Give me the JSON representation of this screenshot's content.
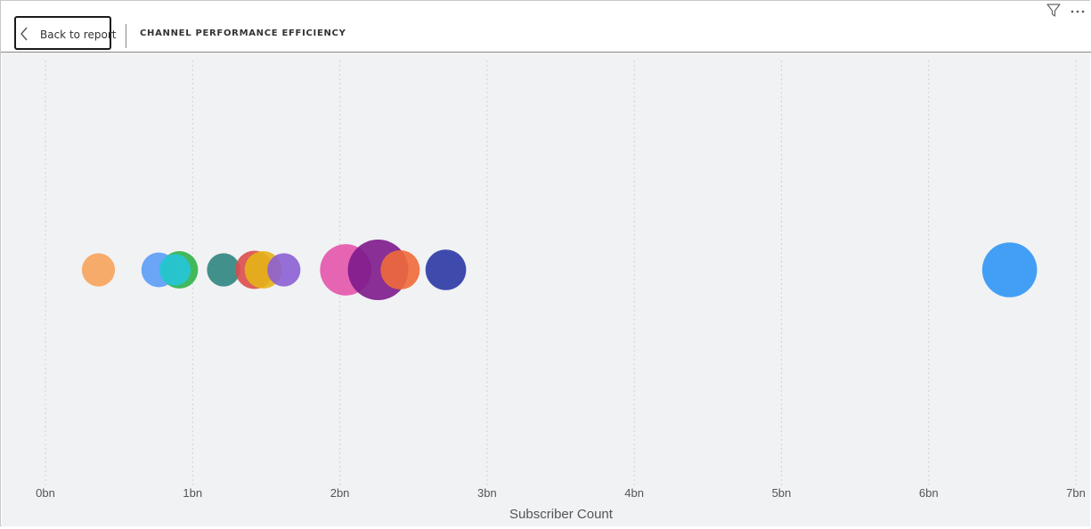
{
  "header": {
    "back_label": "Back to report",
    "title": "CHANNEL PERFORMANCE EFFICIENCY",
    "icons": [
      "chevron-left-icon",
      "filter-icon",
      "more-options-icon"
    ]
  },
  "chart_data": {
    "type": "scatter",
    "title": "CHANNEL PERFORMANCE EFFICIENCY",
    "xlabel": "Subscriber Count",
    "ylabel": "",
    "xlim": [
      0,
      7
    ],
    "x_unit": "bn",
    "xticks": [
      "0bn",
      "1bn",
      "2bn",
      "3bn",
      "4bn",
      "5bn",
      "6bn",
      "7bn"
    ],
    "grid": "vertical dotted",
    "points": [
      {
        "x": 0.36,
        "size": 0.3,
        "color": "#f7a35c"
      },
      {
        "x": 0.77,
        "size": 0.33,
        "color": "#5b9cf6"
      },
      {
        "x": 0.91,
        "size": 0.38,
        "color": "#2fb34a"
      },
      {
        "x": 0.88,
        "size": 0.27,
        "color": "#26c6da"
      },
      {
        "x": 1.21,
        "size": 0.3,
        "color": "#2e8580"
      },
      {
        "x": 1.42,
        "size": 0.4,
        "color": "#dc4d4d"
      },
      {
        "x": 1.48,
        "size": 0.38,
        "color": "#e6b418"
      },
      {
        "x": 1.62,
        "size": 0.3,
        "color": "#8c5fd4"
      },
      {
        "x": 2.04,
        "size": 0.72,
        "color": "#e455ac"
      },
      {
        "x": 2.26,
        "size": 1.0,
        "color": "#7d1a8c"
      },
      {
        "x": 2.41,
        "size": 0.42,
        "color": "#f06a3a"
      },
      {
        "x": 2.72,
        "size": 0.45,
        "color": "#2a38a5"
      },
      {
        "x": 6.55,
        "size": 0.82,
        "color": "#2f96f5"
      }
    ]
  }
}
